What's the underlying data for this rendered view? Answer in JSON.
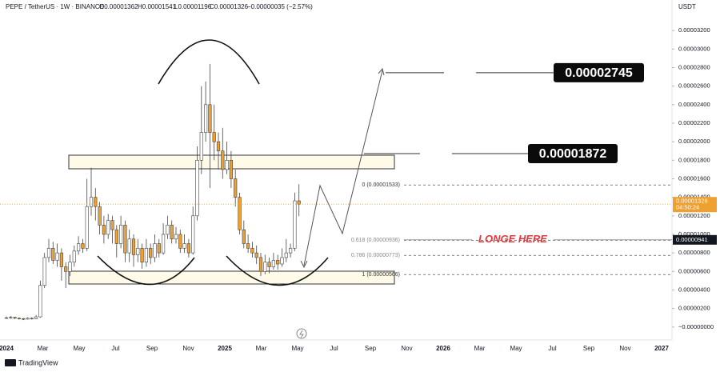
{
  "chart_data": {
    "type": "candlestick",
    "header": [
      "PEPE / TetherUS · 1W · BINANCE",
      "O0.00001362",
      "H0.00001541",
      "L0.00001196",
      "C0.00001326",
      "−0.00000035 (−2.57%)"
    ],
    "currency": "USDT",
    "x_axis_labels": [
      "2024",
      "Mar",
      "May",
      "Jul",
      "Sep",
      "Nov",
      "2025",
      "Mar",
      "May",
      "Jul",
      "Sep",
      "Nov",
      "2026",
      "Mar",
      "May",
      "Jul",
      "Sep",
      "Nov",
      "2027"
    ],
    "up_color": "#ffffff",
    "down_color": "#f0a030",
    "ylim": [
      -1.4e-06,
      3.4e-05
    ],
    "yticks": [
      {
        "value": 0,
        "label": "−0.00000000"
      },
      {
        "value": 2e-06,
        "label": "0.00000200"
      },
      {
        "value": 4e-06,
        "label": "0.00000400"
      },
      {
        "value": 6e-06,
        "label": "0.00000600"
      },
      {
        "value": 8e-06,
        "label": "0.00000800"
      },
      {
        "value": 1e-05,
        "label": "0.00001000"
      },
      {
        "value": 1.2e-05,
        "label": "0.00001200"
      },
      {
        "value": 1.4e-05,
        "label": "0.00001400"
      },
      {
        "value": 1.6e-05,
        "label": "0.00001600"
      },
      {
        "value": 1.8e-05,
        "label": "0.00001800"
      },
      {
        "value": 2e-05,
        "label": "0.00002000"
      },
      {
        "value": 2.2e-05,
        "label": "0.00002200"
      },
      {
        "value": 2.4e-05,
        "label": "0.00002400"
      },
      {
        "value": 2.6e-05,
        "label": "0.00002600"
      },
      {
        "value": 2.8e-05,
        "label": "0.00002800"
      },
      {
        "value": 3e-05,
        "label": "0.00003000"
      },
      {
        "value": 3.2e-05,
        "label": "0.00003200"
      }
    ],
    "open": [
      1e-06,
      1e-06,
      1.05e-06,
      9.5e-07,
      9e-07,
      8.5e-07,
      9.5e-07,
      9e-07,
      1.1e-06,
      4.5e-06,
      7.5e-06,
      8.5e-06,
      7.2e-06,
      8e-06,
      6.5e-06,
      6e-06,
      7e-06,
      8.2e-06,
      9e-06,
      8.5e-06,
      1.3e-05,
      1.4e-05,
      1.3e-05,
      1.1e-05,
      1e-05,
      1.15e-05,
      1.05e-05,
      9e-06,
      1.1e-05,
      8e-06,
      9.5e-06,
      7.8e-06,
      8.5e-06,
      7e-06,
      8.5e-06,
      7.5e-06,
      9e-06,
      8e-06,
      1e-05,
      1.1e-05,
      9.5e-06,
      1e-05,
      8.5e-06,
      9e-06,
      8e-06,
      1.2e-05,
      1.8e-05,
      2.1e-05,
      2.4e-05,
      2.1e-05,
      2e-05,
      1.9e-05,
      1.7e-05,
      1.8e-05,
      1.6e-05,
      1.4e-05,
      1.05e-05,
      9e-06,
      8.5e-06,
      8e-06,
      7.5e-06,
      6e-06,
      7e-06,
      6.5e-06,
      7.2e-06,
      6.8e-06,
      7.5e-06,
      8e-06,
      8.5e-06,
      1.362e-05
    ],
    "high": [
      1.15e-06,
      1.2e-06,
      1.1e-06,
      1.05e-06,
      1e-06,
      1.05e-06,
      1.05e-06,
      1.3e-06,
      5e-06,
      8e-06,
      9.5e-06,
      9.2e-06,
      9e-06,
      8.5e-06,
      7e-06,
      7.8e-06,
      8.8e-06,
      9.8e-06,
      9.5e-06,
      1.6e-05,
      1.72e-05,
      1.5e-05,
      1.35e-05,
      1.2e-05,
      1.22e-05,
      1.2e-05,
      1.1e-05,
      1.2e-05,
      1.15e-05,
      1.05e-05,
      1e-05,
      9.5e-06,
      9e-06,
      9.5e-06,
      9e-06,
      1e-05,
      9.5e-06,
      1.12e-05,
      1.2e-05,
      1.15e-05,
      1.08e-05,
      1.05e-05,
      1e-05,
      9.5e-06,
      1.3e-05,
      1.95e-05,
      2.6e-05,
      2.65e-05,
      2.84e-05,
      2.4e-05,
      2.1e-05,
      2.15e-05,
      2e-05,
      1.9e-05,
      1.7e-05,
      1.45e-05,
      1.15e-05,
      1e-05,
      9.2e-06,
      8.8e-06,
      8e-06,
      7.8e-06,
      7.5e-06,
      8e-06,
      7.8e-06,
      8.5e-06,
      9.5e-06,
      9e-06,
      1.45e-05,
      1.541e-05
    ],
    "low": [
      9e-07,
      9e-07,
      8.5e-07,
      8e-07,
      7.5e-07,
      8e-07,
      8e-07,
      8.5e-07,
      1e-06,
      4.2e-06,
      7e-06,
      6.8e-06,
      6.5e-06,
      5e-06,
      4.2e-06,
      5.5e-06,
      6.5e-06,
      7.8e-06,
      8e-06,
      8.2e-06,
      1.2e-05,
      1.15e-05,
      1e-05,
      9e-06,
      9.5e-06,
      9e-06,
      7.5e-06,
      8.5e-06,
      7e-06,
      7e-06,
      6.5e-06,
      7e-06,
      6.3e-06,
      6.5e-06,
      6.8e-06,
      7e-06,
      7.5e-06,
      7.8e-06,
      9.5e-06,
      9e-06,
      9e-06,
      8e-06,
      8e-06,
      7.5e-06,
      7.8e-06,
      1.15e-05,
      1.65e-05,
      2e-05,
      1.5e-05,
      1.8e-05,
      1.7e-05,
      1.6e-05,
      1.65e-05,
      1.5e-05,
      1.3e-05,
      1e-05,
      8.5e-06,
      8e-06,
      7.5e-06,
      6.8e-06,
      5.5e-06,
      5.7e-06,
      5.8e-06,
      6.2e-06,
      6.2e-06,
      6.5e-06,
      7e-06,
      7.5e-06,
      8.2e-06,
      1.196e-05
    ],
    "close": [
      1e-06,
      1.05e-06,
      9.5e-07,
      9e-07,
      8.5e-07,
      9.5e-07,
      9e-07,
      1.1e-06,
      4.5e-06,
      7.5e-06,
      8.5e-06,
      7.2e-06,
      8e-06,
      6.5e-06,
      6e-06,
      7e-06,
      8.2e-06,
      9e-06,
      8.5e-06,
      1.3e-05,
      1.4e-05,
      1.3e-05,
      1.1e-05,
      1e-05,
      1.15e-05,
      1.05e-05,
      9e-06,
      1.1e-05,
      8e-06,
      9.5e-06,
      7.8e-06,
      8.5e-06,
      7e-06,
      8.5e-06,
      7.5e-06,
      9e-06,
      8e-06,
      1e-05,
      1.1e-05,
      9.5e-06,
      1e-05,
      8.5e-06,
      9e-06,
      8e-06,
      1.2e-05,
      1.8e-05,
      2.1e-05,
      2.4e-05,
      2.1e-05,
      2e-05,
      1.9e-05,
      1.7e-05,
      1.8e-05,
      1.6e-05,
      1.4e-05,
      1.05e-05,
      9e-06,
      8.5e-06,
      8e-06,
      7.5e-06,
      6e-06,
      7e-06,
      6.5e-06,
      7.2e-06,
      6.8e-06,
      7.5e-06,
      8e-06,
      8.5e-06,
      1.362e-05,
      1.326e-05
    ],
    "current_price_label": "0.00001326",
    "countdown": "04:50:24",
    "fib_levels": [
      {
        "label": "0 (0.00001533)",
        "value": 1.533e-05
      },
      {
        "label": "0.618 (0.00000936)",
        "value": 9.36e-06
      },
      {
        "label": "0.786 (0.00000773)",
        "value": 7.73e-06
      },
      {
        "label": "1 (0.00000566)",
        "value": 5.66e-06
      }
    ],
    "entry": {
      "text": "LONGE HERE",
      "label": "0.00000941",
      "value": 9.41e-06
    },
    "targets": [
      {
        "label": "0.00002745",
        "value": 2.745e-05
      },
      {
        "label": "0.00001872",
        "value": 1.872e-05
      }
    ],
    "brand": "TradingView"
  }
}
